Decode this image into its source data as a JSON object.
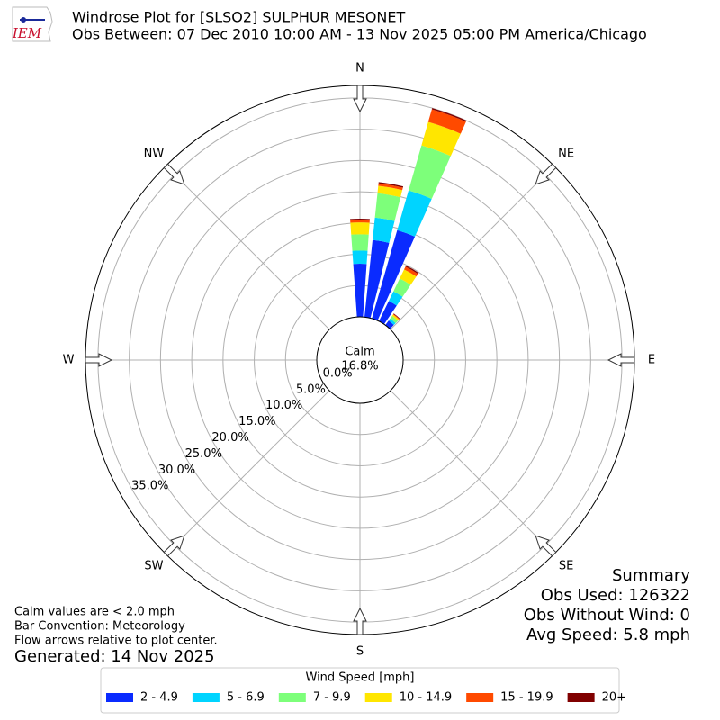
{
  "chart_data": {
    "type": "windrose",
    "logo_text": "IEM",
    "title": "Windrose Plot for [SLSO2] SULPHUR MESONET",
    "subtitle": "Obs Between: 07 Dec 2010 10:00 AM - 13 Nov 2025 05:00 PM America/Chicago",
    "compass": [
      "N",
      "NE",
      "E",
      "SE",
      "S",
      "SW",
      "W",
      "NW"
    ],
    "calm_label": "Calm",
    "calm": {
      "value": 16.8,
      "label": "16.8%"
    },
    "x": [
      0,
      10,
      20,
      30,
      40
    ],
    "series": [
      {
        "name": "2 - 4.9",
        "color": "#0a2bff",
        "values": [
          8.5,
          12.4,
          14.7,
          3.6,
          0.9
        ]
      },
      {
        "name": "5 - 6.9",
        "color": "#00d4ff",
        "values": [
          2.1,
          3.6,
          6.6,
          1.7,
          0.4
        ]
      },
      {
        "name": "7 - 9.9",
        "color": "#7dff7a",
        "values": [
          2.6,
          3.9,
          7.5,
          2.3,
          0.5
        ]
      },
      {
        "name": "10 - 14.9",
        "color": "#ffe600",
        "values": [
          1.9,
          1.2,
          3.9,
          1.6,
          0.3
        ]
      },
      {
        "name": "15 - 19.9",
        "color": "#ff4a00",
        "values": [
          0.4,
          0.4,
          2.1,
          0.5,
          0.1
        ]
      },
      {
        "name": "20+",
        "color": "#800000",
        "values": [
          0.2,
          0.2,
          0.2,
          0.2,
          0.1
        ]
      }
    ],
    "ylim": [
      0,
      37
    ],
    "yticks": [
      {
        "value": 0,
        "label": "0.0%"
      },
      {
        "value": 5,
        "label": "5.0%"
      },
      {
        "value": 10,
        "label": "10.0%"
      },
      {
        "value": 15,
        "label": "15.0%"
      },
      {
        "value": 20,
        "label": "20.0%"
      },
      {
        "value": 25,
        "label": "25.0%"
      },
      {
        "value": 30,
        "label": "30.0%"
      },
      {
        "value": 35,
        "label": "35.0%"
      }
    ],
    "grid": true,
    "legend_title": "Wind Speed [mph]",
    "summary": [
      "Summary",
      "Obs Used: 126322",
      "Obs Without Wind: 0",
      "Avg Speed: 5.8 mph"
    ],
    "notes": [
      "Calm values are < 2.0 mph",
      "Bar Convention: Meteorology",
      "Flow arrows relative to plot center."
    ],
    "generated": "Generated: 14 Nov 2025"
  }
}
